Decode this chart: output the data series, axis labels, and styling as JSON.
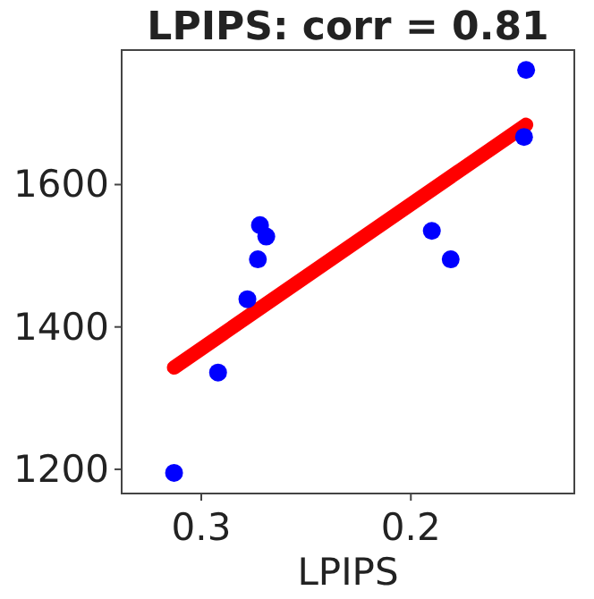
{
  "chart_data": {
    "type": "scatter",
    "title": "LPIPS: corr = 0.81",
    "xlabel": "LPIPS",
    "xlim": [
      0.338,
      0.122
    ],
    "ylim": [
      1166,
      1789
    ],
    "xticks": [
      0.3,
      0.2
    ],
    "yticks": [
      1200,
      1400,
      1600
    ],
    "grid": false,
    "series": [
      {
        "color": "#0000ff",
        "marker": "circle",
        "x": [
          0.313,
          0.292,
          0.278,
          0.273,
          0.272,
          0.269,
          0.19,
          0.181,
          0.146,
          0.145
        ],
        "values": [
          1195,
          1336,
          1439,
          1495,
          1543,
          1527,
          1535,
          1495,
          1667,
          1761
        ]
      },
      {
        "type": "line",
        "color": "#ff0000",
        "x": [
          0.313,
          0.145
        ],
        "values": [
          1343,
          1684
        ]
      }
    ]
  }
}
